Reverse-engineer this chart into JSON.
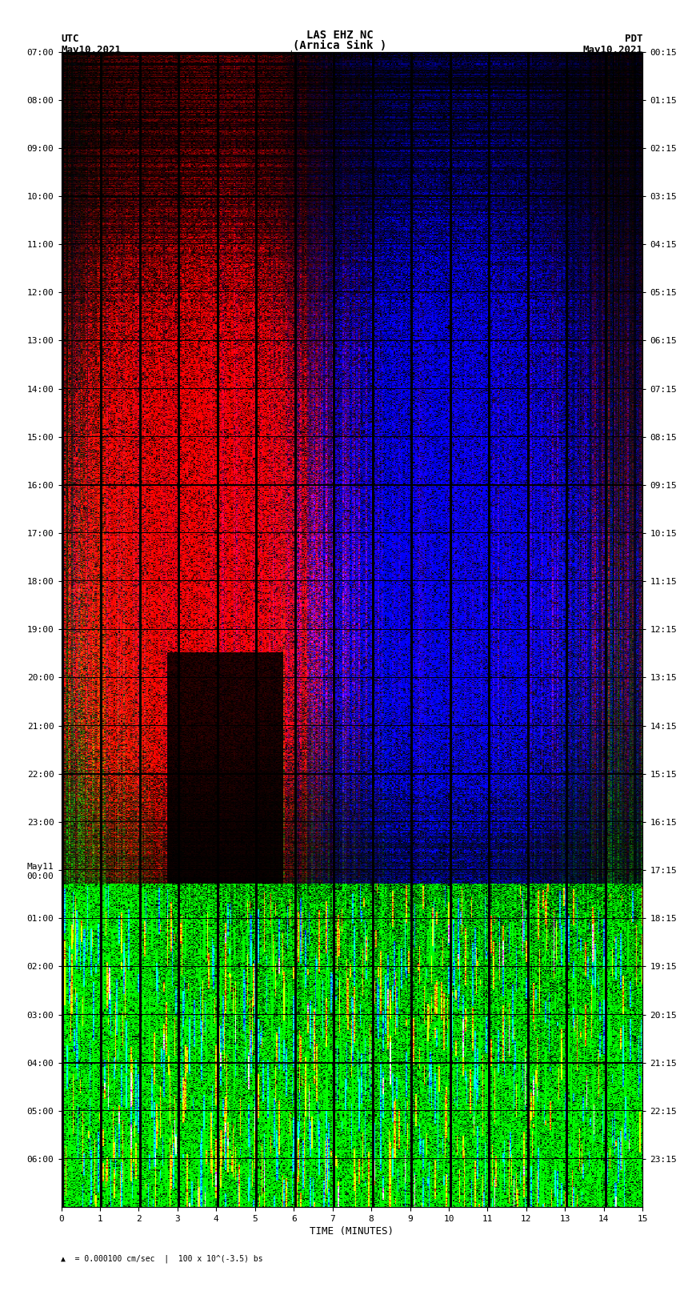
{
  "title_line1": "LAS EHZ NC",
  "title_line2": "(Arnica Sink )",
  "title_line3": "= 0.000100 cm/sec",
  "left_label_line1": "UTC",
  "left_label_line2": "May10,2021",
  "right_label_line1": "PDT",
  "right_label_line2": "May10,2021",
  "utc_times": [
    "07:00",
    "08:00",
    "09:00",
    "10:00",
    "11:00",
    "12:00",
    "13:00",
    "14:00",
    "15:00",
    "16:00",
    "17:00",
    "18:00",
    "19:00",
    "20:00",
    "21:00",
    "22:00",
    "23:00",
    "May11\n00:00",
    "01:00",
    "02:00",
    "03:00",
    "04:00",
    "05:00",
    "06:00"
  ],
  "pdt_times": [
    "00:15",
    "01:15",
    "02:15",
    "03:15",
    "04:15",
    "05:15",
    "06:15",
    "07:15",
    "08:15",
    "09:15",
    "10:15",
    "11:15",
    "12:15",
    "13:15",
    "14:15",
    "15:15",
    "16:15",
    "17:15",
    "18:15",
    "19:15",
    "20:15",
    "21:15",
    "22:15",
    "23:15"
  ],
  "xlabel": "TIME (MINUTES)",
  "xlabel2": "= 0.000100 cm/sec  |  100 x 10^(-3.5) bs",
  "x_ticks": [
    0,
    1,
    2,
    3,
    4,
    5,
    6,
    7,
    8,
    9,
    10,
    11,
    12,
    13,
    14,
    15
  ],
  "background_color": "#ffffff",
  "seed": 42,
  "n_cols": 480,
  "n_rows": 1400
}
